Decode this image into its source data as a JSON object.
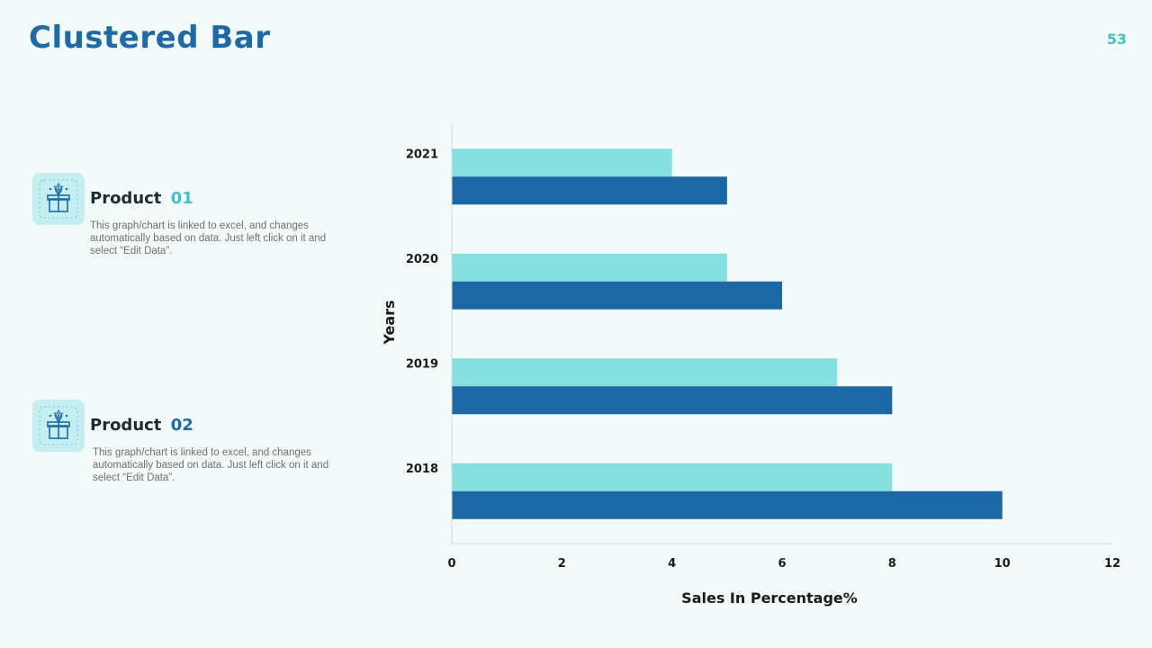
{
  "slide": {
    "title": "Clustered Bar",
    "page_number": "53"
  },
  "products": [
    {
      "name": "Product",
      "number": "01",
      "number_color": "#3cc3c9",
      "description": "This graph/chart is linked to excel, and changes automatically based on data. Just left click on it and select “Edit Data”.",
      "icon": "gift-box-icon"
    },
    {
      "name": "Product",
      "number": "02",
      "number_color": "#1d6aa6",
      "description": "This graph/chart is linked to excel, and changes automatically based on data. Just left click on it and select “Edit Data”.",
      "icon": "gift-box-icon"
    }
  ],
  "colors": {
    "title": "#1d6aa6",
    "series_light": "#86e0df",
    "series_dark": "#1c67a5",
    "background": "#f3fbfa"
  },
  "chart_data": {
    "type": "bar",
    "orientation": "horizontal",
    "categories": [
      "2018",
      "2019",
      "2020",
      "2021"
    ],
    "series": [
      {
        "values": [
          8,
          7,
          5,
          4
        ],
        "color": "#86e0df"
      },
      {
        "values": [
          10,
          8,
          6,
          5
        ],
        "color": "#1c67a5"
      }
    ],
    "xlabel": "Sales In Percentage%",
    "ylabel": "Years",
    "xlim": [
      0,
      12
    ],
    "xticks": [
      "0",
      "2",
      "4",
      "6",
      "8",
      "10",
      "12"
    ],
    "grid": false,
    "legend": "none"
  }
}
